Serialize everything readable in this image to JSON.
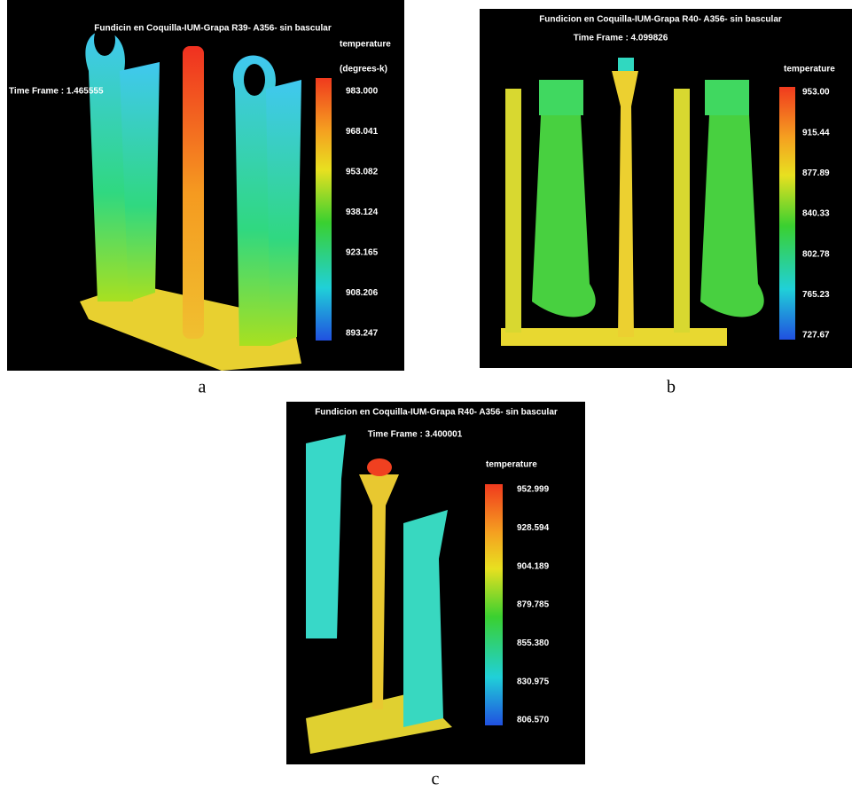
{
  "panels": [
    {
      "title": "Fundicin en Coquilla-IUM-Grapa R39- A356- sin bascular",
      "time_frame": "Time Frame : 1.465555",
      "legend": {
        "label": "temperature",
        "unit": "(degrees-k)",
        "ticks": [
          "983.000",
          "968.041",
          "953.082",
          "938.124",
          "923.165",
          "908.206",
          "893.247"
        ]
      },
      "caption": "a"
    },
    {
      "title": "Fundicion en Coquilla-IUM-Grapa R40- A356- sin bascular",
      "time_frame": "Time Frame : 4.099826",
      "legend": {
        "label": "temperature",
        "ticks": [
          "953.00",
          "915.44",
          "877.89",
          "840.33",
          "802.78",
          "765.23",
          "727.67"
        ]
      },
      "caption": "b"
    },
    {
      "title": "Fundicion en Coquilla-IUM-Grapa R40- A356- sin bascular",
      "time_frame": "Time Frame : 3.400001",
      "legend": {
        "label": "temperature",
        "ticks": [
          "952.999",
          "928.594",
          "904.189",
          "879.785",
          "855.380",
          "830.975",
          "806.570"
        ]
      },
      "caption": "c"
    }
  ]
}
